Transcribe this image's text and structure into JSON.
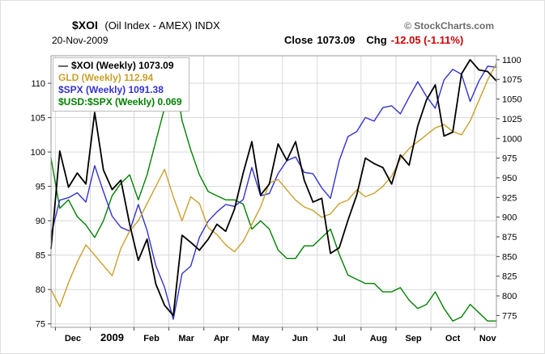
{
  "header": {
    "symbol": "$XOI",
    "title_rest": "(Oil Index - AMEX) INDX",
    "date": "20-Nov-2009",
    "close_label": "Close",
    "close_value": "1073.09",
    "chg_label": "Chg",
    "chg_value": "-12.05 (-1.11%)",
    "watermark": "© StockCharts.com"
  },
  "colors": {
    "negative_change": "#cc0000",
    "watermark_gray": "#6d6d6d",
    "grid": "#d9d9d9",
    "plot_border": "#999999"
  },
  "chart_data": {
    "type": "line",
    "title": "$XOI (Oil Index - AMEX) INDX",
    "subtitle": "20-Nov-2009  Close 1073.09  Chg -12.05 (-1.11%)",
    "interval": "Weekly",
    "grid": true,
    "legend_position": "top-left",
    "grid_color": "#d9d9d9",
    "border_color": "#999999",
    "left_axis": {
      "ticks": [
        110,
        105,
        100,
        95,
        90,
        85,
        80,
        75
      ],
      "range": [
        74.5,
        114
      ]
    },
    "right_axis": {
      "ticks": [
        1100,
        1075,
        1050,
        1025,
        1000,
        975,
        950,
        925,
        900,
        875,
        850,
        825,
        800,
        775
      ],
      "range": [
        760,
        1105
      ]
    },
    "x_axis": {
      "boundaries": [
        0.5,
        4.5,
        9.5,
        13.5,
        17.5,
        21.5,
        26.5,
        30.5,
        35.5,
        39.5,
        43.5,
        48.5
      ],
      "labels": [
        {
          "text": "Dec",
          "week": 2.5,
          "bold": false
        },
        {
          "text": "2009",
          "week": 7,
          "bold": true
        },
        {
          "text": "Feb",
          "week": 11.5,
          "bold": false
        },
        {
          "text": "Mar",
          "week": 15.5,
          "bold": false
        },
        {
          "text": "Apr",
          "week": 19.5,
          "bold": false
        },
        {
          "text": "May",
          "week": 24,
          "bold": false
        },
        {
          "text": "Jun",
          "week": 28.5,
          "bold": false
        },
        {
          "text": "Jul",
          "week": 33,
          "bold": false
        },
        {
          "text": "Aug",
          "week": 37.5,
          "bold": false
        },
        {
          "text": "Sep",
          "week": 41.5,
          "bold": false
        },
        {
          "text": "Oct",
          "week": 46,
          "bold": false
        },
        {
          "text": "Nov",
          "week": 50,
          "bold": false
        }
      ]
    },
    "series": [
      {
        "id": "xoi",
        "label": "$XOI (Weekly)",
        "value_label": "1073.09",
        "color": "#000000",
        "stroke_width": 1.8,
        "marker": true,
        "scale": [
          760,
          1105
        ],
        "values": [
          860,
          984,
          938,
          956,
          942,
          1033,
          960,
          935,
          947,
          891,
          845,
          872,
          815,
          788,
          775,
          877,
          868,
          858,
          872,
          891,
          882,
          910,
          956,
          996,
          928,
          942,
          993,
          972,
          996,
          947,
          919,
          924,
          854,
          861,
          896,
          928,
          975,
          968,
          963,
          942,
          979,
          966,
          1016,
          1049,
          1068,
          1003,
          1008,
          1082,
          1100,
          1087,
          1085,
          1073
        ]
      },
      {
        "id": "gld",
        "label": "GLD (Weekly)",
        "value_label": "112.94",
        "color": "#c9a02c",
        "stroke_width": 1.4,
        "marker": false,
        "scale": [
          74.5,
          114
        ],
        "values": [
          80,
          77.5,
          81,
          84,
          86.5,
          85,
          83.5,
          82,
          86,
          88.5,
          90,
          92.5,
          95,
          97.5,
          93.5,
          90,
          93.5,
          92.5,
          89,
          88,
          86.5,
          85.5,
          87,
          89.5,
          92,
          95.5,
          96,
          94.5,
          93,
          92,
          91.5,
          90.5,
          91,
          92.5,
          93,
          94.5,
          93.5,
          94,
          95,
          96.5,
          99,
          100.5,
          101.5,
          102.5,
          103.5,
          104,
          103,
          102.5,
          104.5,
          107.5,
          110.5,
          112.9
        ]
      },
      {
        "id": "spx",
        "label": "$SPX (Weekly)",
        "value_label": "1091.38",
        "color": "#3333cc",
        "stroke_width": 1.4,
        "marker": false,
        "scale": [
          670,
          1110
        ],
        "values": [
          820,
          876,
          880,
          888,
          873,
          932,
          890,
          850,
          832,
          826,
          869,
          827,
          770,
          735,
          683,
          757,
          769,
          816,
          842,
          857,
          869,
          866,
          877,
          929,
          883,
          887,
          919,
          940,
          946,
          921,
          919,
          896,
          879,
          940,
          979,
          987,
          1010,
          1004,
          1026,
          1029,
          1016,
          1043,
          1068,
          1044,
          1025,
          1071,
          1088,
          1080,
          1036,
          1069,
          1093,
          1091.4
        ]
      },
      {
        "id": "usdspx",
        "label": "$USD:$SPX (Weekly)",
        "value_label": "0.069",
        "color": "#008000",
        "stroke_width": 1.4,
        "marker": false,
        "scale": [
          0.0675,
          0.1325
        ],
        "values": [
          0.108,
          0.096,
          0.098,
          0.094,
          0.092,
          0.089,
          0.093,
          0.099,
          0.102,
          0.104,
          0.098,
          0.104,
          0.112,
          0.12,
          0.13,
          0.117,
          0.11,
          0.104,
          0.1,
          0.099,
          0.098,
          0.098,
          0.097,
          0.091,
          0.093,
          0.091,
          0.086,
          0.084,
          0.084,
          0.087,
          0.087,
          0.089,
          0.091,
          0.085,
          0.08,
          0.079,
          0.078,
          0.078,
          0.076,
          0.076,
          0.077,
          0.074,
          0.072,
          0.073,
          0.076,
          0.072,
          0.069,
          0.07,
          0.073,
          0.071,
          0.069,
          0.069
        ]
      }
    ]
  }
}
